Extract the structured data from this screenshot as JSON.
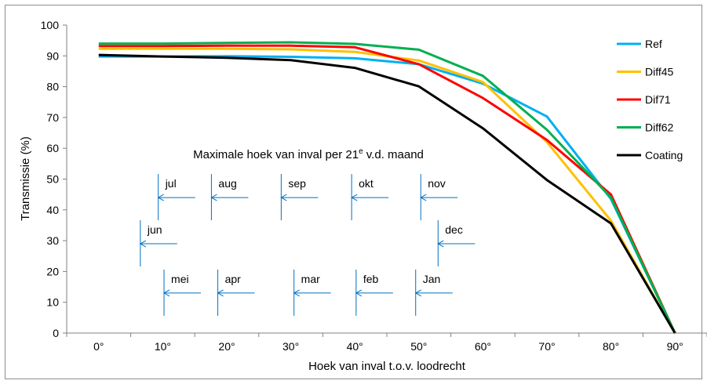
{
  "chart_data": {
    "type": "line",
    "title": "",
    "xlabel": "Hoek van inval t.o.v. loodrecht",
    "ylabel": "Transmissie (%)",
    "x": [
      0,
      10,
      20,
      30,
      40,
      50,
      60,
      70,
      80,
      90
    ],
    "x_tick_labels": [
      "0°",
      "10°",
      "20°",
      "30°",
      "40°",
      "50°",
      "60°",
      "70°",
      "80°",
      "90°"
    ],
    "xlim": [
      -5,
      95
    ],
    "ylim": [
      0,
      100
    ],
    "y_ticks": [
      0,
      10,
      20,
      30,
      40,
      50,
      60,
      70,
      80,
      90,
      100
    ],
    "grid": false,
    "legend_position": "right",
    "series": [
      {
        "name": "Ref",
        "color": "#00B0F0",
        "values": [
          89.8,
          89.8,
          89.9,
          89.7,
          89.2,
          87.3,
          81.0,
          70.3,
          43.5,
          0
        ]
      },
      {
        "name": "Diff45",
        "color": "#FFC000",
        "values": [
          92.3,
          92.3,
          92.3,
          92.1,
          91.3,
          88.5,
          81.5,
          62.0,
          36.5,
          0
        ]
      },
      {
        "name": "Dif71",
        "color": "#FF0000",
        "values": [
          93.2,
          93.2,
          93.3,
          93.3,
          92.8,
          87.3,
          76.3,
          62.7,
          45.0,
          0
        ]
      },
      {
        "name": "Diff62",
        "color": "#00B050",
        "values": [
          94.0,
          94.0,
          94.2,
          94.4,
          93.9,
          92.0,
          83.5,
          66.0,
          44.0,
          0
        ]
      },
      {
        "name": "Coating",
        "color": "#000000",
        "values": [
          90.3,
          89.8,
          89.4,
          88.6,
          86.1,
          80.1,
          66.5,
          49.7,
          35.6,
          0
        ]
      }
    ],
    "annotation": {
      "title_prefix": "Maximale hoek van inval per 21",
      "title_superscript": "e",
      "title_suffix": " v.d. maand",
      "arrow_color": "#0070C0",
      "months": [
        {
          "label": "jul",
          "angle": 9.3,
          "y": 44
        },
        {
          "label": "aug",
          "angle": 17.6,
          "y": 44
        },
        {
          "label": "sep",
          "angle": 28.5,
          "y": 44
        },
        {
          "label": "okt",
          "angle": 39.5,
          "y": 44
        },
        {
          "label": "nov",
          "angle": 50.3,
          "y": 44
        },
        {
          "label": "jun",
          "angle": 6.5,
          "y": 29
        },
        {
          "label": "dec",
          "angle": 53.0,
          "y": 29
        },
        {
          "label": "mei",
          "angle": 10.2,
          "y": 13
        },
        {
          "label": "apr",
          "angle": 18.6,
          "y": 13
        },
        {
          "label": "mar",
          "angle": 30.5,
          "y": 13
        },
        {
          "label": "feb",
          "angle": 40.2,
          "y": 13
        },
        {
          "label": "Jan",
          "angle": 49.5,
          "y": 13
        }
      ]
    }
  }
}
